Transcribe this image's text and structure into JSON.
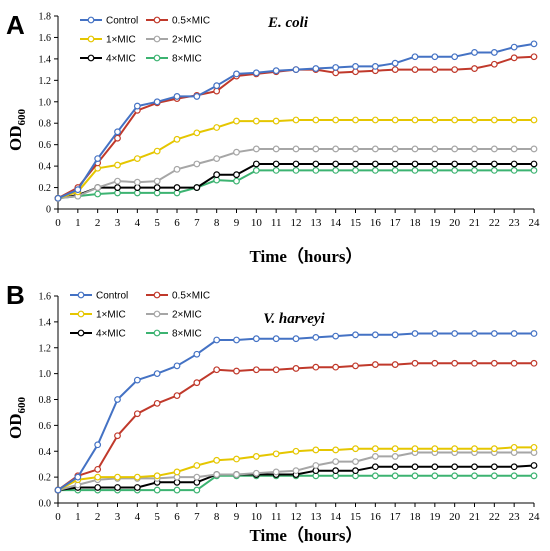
{
  "chart_data": [
    {
      "type": "line",
      "panel_label": "A",
      "title": "E. coli",
      "xlabel": "Time（hours）",
      "ylabel": "OD",
      "ylabel_sub": "600",
      "x": [
        0,
        1,
        2,
        3,
        4,
        5,
        6,
        7,
        8,
        9,
        10,
        11,
        12,
        13,
        14,
        15,
        16,
        17,
        18,
        19,
        20,
        21,
        22,
        23,
        24
      ],
      "xlim": [
        0,
        24
      ],
      "ylim": [
        0,
        1.8
      ],
      "yticks": [
        "0",
        "0.2",
        "0.4",
        "0.6",
        "0.8",
        "1.0",
        "1.2",
        "1.4",
        "1.6",
        "1.8"
      ],
      "xticks": [
        "0",
        "1",
        "2",
        "3",
        "4",
        "5",
        "6",
        "7",
        "8",
        "9",
        "10",
        "11",
        "12",
        "13",
        "14",
        "15",
        "16",
        "17",
        "18",
        "19",
        "20",
        "21",
        "22",
        "23",
        "24"
      ],
      "legend_position": "top-left",
      "series": [
        {
          "name": "Control",
          "color": "#4472C4",
          "values": [
            0.1,
            0.18,
            0.47,
            0.72,
            0.96,
            1.0,
            1.05,
            1.05,
            1.15,
            1.26,
            1.27,
            1.29,
            1.3,
            1.31,
            1.32,
            1.33,
            1.33,
            1.36,
            1.42,
            1.42,
            1.42,
            1.46,
            1.46,
            1.51,
            1.54
          ]
        },
        {
          "name": "0.5×MIC",
          "color": "#C0392B",
          "values": [
            0.1,
            0.2,
            0.43,
            0.66,
            0.92,
            0.99,
            1.03,
            1.06,
            1.1,
            1.24,
            1.26,
            1.28,
            1.3,
            1.3,
            1.27,
            1.28,
            1.29,
            1.3,
            1.3,
            1.3,
            1.3,
            1.31,
            1.35,
            1.41,
            1.42
          ]
        },
        {
          "name": "1×MIC",
          "color": "#E5C600",
          "values": [
            0.1,
            0.16,
            0.38,
            0.41,
            0.47,
            0.54,
            0.65,
            0.71,
            0.76,
            0.82,
            0.82,
            0.82,
            0.83,
            0.83,
            0.83,
            0.83,
            0.83,
            0.83,
            0.83,
            0.83,
            0.83,
            0.83,
            0.83,
            0.83,
            0.83
          ]
        },
        {
          "name": "2×MIC",
          "color": "#A6A6A6",
          "values": [
            0.1,
            0.12,
            0.2,
            0.26,
            0.25,
            0.26,
            0.37,
            0.42,
            0.47,
            0.53,
            0.56,
            0.56,
            0.56,
            0.56,
            0.56,
            0.56,
            0.56,
            0.56,
            0.56,
            0.56,
            0.56,
            0.56,
            0.56,
            0.56,
            0.56
          ]
        },
        {
          "name": "4×MIC",
          "color": "#000000",
          "values": [
            0.1,
            0.13,
            0.2,
            0.2,
            0.2,
            0.2,
            0.2,
            0.2,
            0.32,
            0.32,
            0.42,
            0.42,
            0.42,
            0.42,
            0.42,
            0.42,
            0.42,
            0.42,
            0.42,
            0.42,
            0.42,
            0.42,
            0.42,
            0.42,
            0.42
          ]
        },
        {
          "name": "8×MIC",
          "color": "#3CB371",
          "values": [
            0.1,
            0.12,
            0.14,
            0.15,
            0.15,
            0.15,
            0.15,
            0.2,
            0.27,
            0.26,
            0.36,
            0.36,
            0.36,
            0.36,
            0.36,
            0.36,
            0.36,
            0.36,
            0.36,
            0.36,
            0.36,
            0.36,
            0.36,
            0.36,
            0.36
          ]
        }
      ]
    },
    {
      "type": "line",
      "panel_label": "B",
      "title": "V. harveyi",
      "xlabel": "Time（hours）",
      "ylabel": "OD",
      "ylabel_sub": "600",
      "x": [
        0,
        1,
        2,
        3,
        4,
        5,
        6,
        7,
        8,
        9,
        10,
        11,
        12,
        13,
        14,
        15,
        16,
        17,
        18,
        19,
        20,
        21,
        22,
        23,
        24
      ],
      "xlim": [
        0,
        24
      ],
      "ylim": [
        0,
        1.6
      ],
      "yticks": [
        "0.0",
        "0.2",
        "0.4",
        "0.6",
        "0.8",
        "1.0",
        "1.2",
        "1.4",
        "1.6"
      ],
      "xticks": [
        "0",
        "1",
        "2",
        "3",
        "4",
        "5",
        "6",
        "7",
        "8",
        "9",
        "10",
        "11",
        "12",
        "13",
        "14",
        "15",
        "16",
        "17",
        "18",
        "19",
        "20",
        "21",
        "22",
        "23",
        "24"
      ],
      "legend_position": "top-left",
      "series": [
        {
          "name": "Control",
          "color": "#4472C4",
          "values": [
            0.1,
            0.2,
            0.45,
            0.8,
            0.95,
            1.0,
            1.06,
            1.15,
            1.26,
            1.26,
            1.27,
            1.27,
            1.27,
            1.28,
            1.29,
            1.3,
            1.3,
            1.3,
            1.31,
            1.31,
            1.31,
            1.31,
            1.31,
            1.31,
            1.31
          ]
        },
        {
          "name": "0.5×MIC",
          "color": "#C0392B",
          "values": [
            0.1,
            0.21,
            0.26,
            0.52,
            0.69,
            0.77,
            0.83,
            0.93,
            1.03,
            1.02,
            1.03,
            1.03,
            1.04,
            1.05,
            1.05,
            1.06,
            1.07,
            1.07,
            1.08,
            1.08,
            1.08,
            1.08,
            1.08,
            1.08,
            1.08
          ]
        },
        {
          "name": "1×MIC",
          "color": "#E5C600",
          "values": [
            0.1,
            0.18,
            0.2,
            0.2,
            0.2,
            0.21,
            0.24,
            0.29,
            0.33,
            0.34,
            0.36,
            0.38,
            0.4,
            0.41,
            0.41,
            0.42,
            0.42,
            0.42,
            0.42,
            0.42,
            0.42,
            0.42,
            0.42,
            0.43,
            0.43
          ]
        },
        {
          "name": "2×MIC",
          "color": "#A6A6A6",
          "values": [
            0.1,
            0.14,
            0.18,
            0.19,
            0.19,
            0.19,
            0.2,
            0.2,
            0.22,
            0.22,
            0.23,
            0.24,
            0.25,
            0.29,
            0.32,
            0.32,
            0.36,
            0.36,
            0.39,
            0.39,
            0.39,
            0.39,
            0.39,
            0.39,
            0.39
          ]
        },
        {
          "name": "4×MIC",
          "color": "#000000",
          "values": [
            0.1,
            0.12,
            0.12,
            0.12,
            0.12,
            0.16,
            0.16,
            0.16,
            0.22,
            0.22,
            0.22,
            0.22,
            0.22,
            0.25,
            0.25,
            0.25,
            0.28,
            0.28,
            0.28,
            0.28,
            0.28,
            0.28,
            0.28,
            0.28,
            0.29
          ]
        },
        {
          "name": "8×MIC",
          "color": "#3CB371",
          "values": [
            0.1,
            0.1,
            0.1,
            0.1,
            0.1,
            0.1,
            0.1,
            0.1,
            0.21,
            0.21,
            0.21,
            0.21,
            0.21,
            0.21,
            0.21,
            0.21,
            0.21,
            0.21,
            0.21,
            0.21,
            0.21,
            0.21,
            0.21,
            0.21,
            0.21
          ]
        }
      ]
    }
  ]
}
